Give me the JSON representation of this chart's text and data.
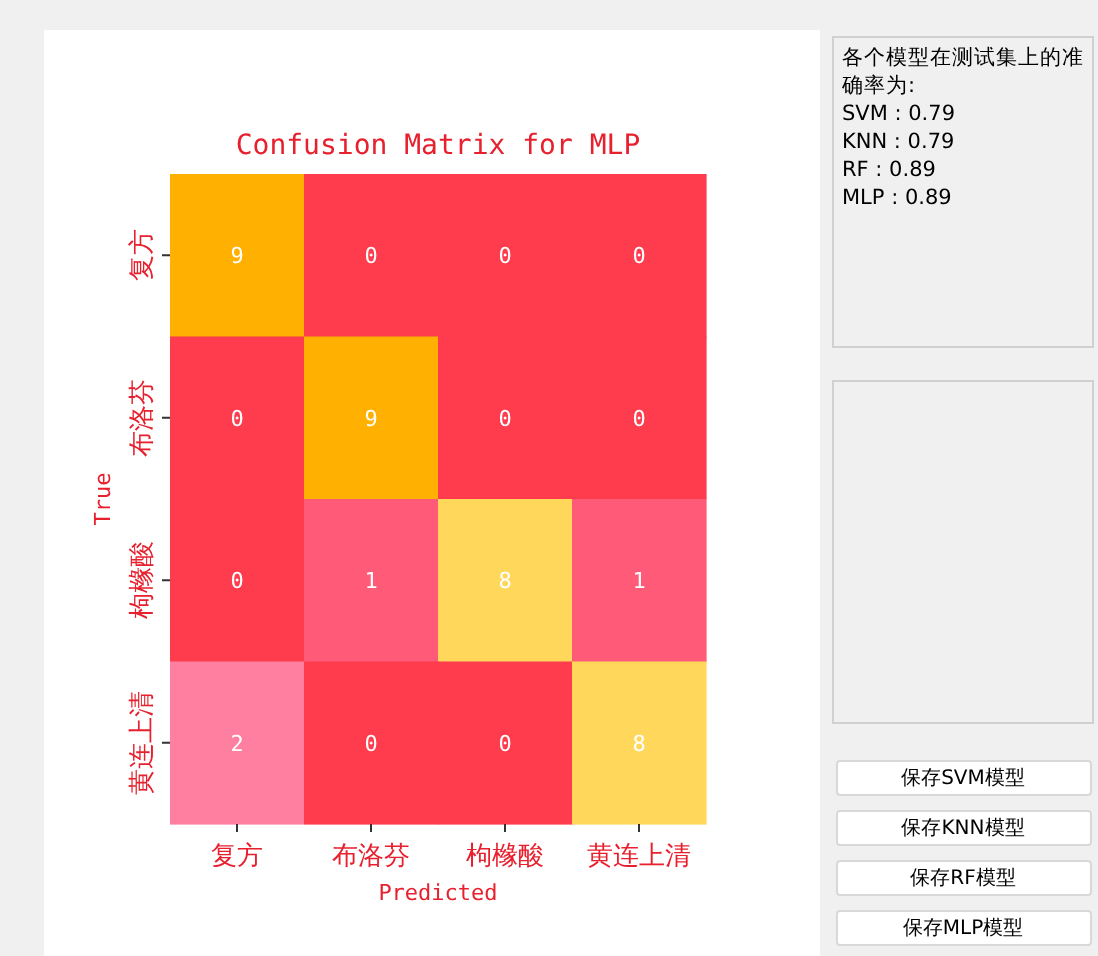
{
  "chart_data": [
    {
      "type": "heatmap",
      "title": "Confusion Matrix for MLP",
      "xlabel": "Predicted",
      "ylabel": "True",
      "categories": [
        "复方",
        "布洛芬",
        "枸橼酸",
        "黄连上清"
      ],
      "y_categories": [
        "复方",
        "布洛芬",
        "枸橼酸",
        "黄连上清"
      ],
      "cells": [
        [
          9,
          0,
          0,
          0
        ],
        [
          0,
          9,
          0,
          0
        ],
        [
          0,
          1,
          8,
          1
        ],
        [
          2,
          0,
          0,
          8
        ]
      ],
      "colors": [
        [
          "#ffb000",
          "#ff3b4e",
          "#ff3b4e",
          "#ff3b4e"
        ],
        [
          "#ff3b4e",
          "#ffb000",
          "#ff3b4e",
          "#ff3b4e"
        ],
        [
          "#ff3b4e",
          "#ff5a78",
          "#ffd75a",
          "#ff5a78"
        ],
        [
          "#ff7fa0",
          "#ff3b4e",
          "#ff3b4e",
          "#ffd75a"
        ]
      ],
      "data_labels": true
    },
    {
      "type": "other",
      "annotations": [
        "各个模型在测试集上的准确率为:",
        "SVM : 0.79",
        "KNN : 0.79",
        "RF : 0.89",
        "MLP : 0.89",
        "保存SVM模型",
        "保存KNN模型",
        "保存RF模型",
        "保存MLP模型"
      ]
    }
  ]
}
